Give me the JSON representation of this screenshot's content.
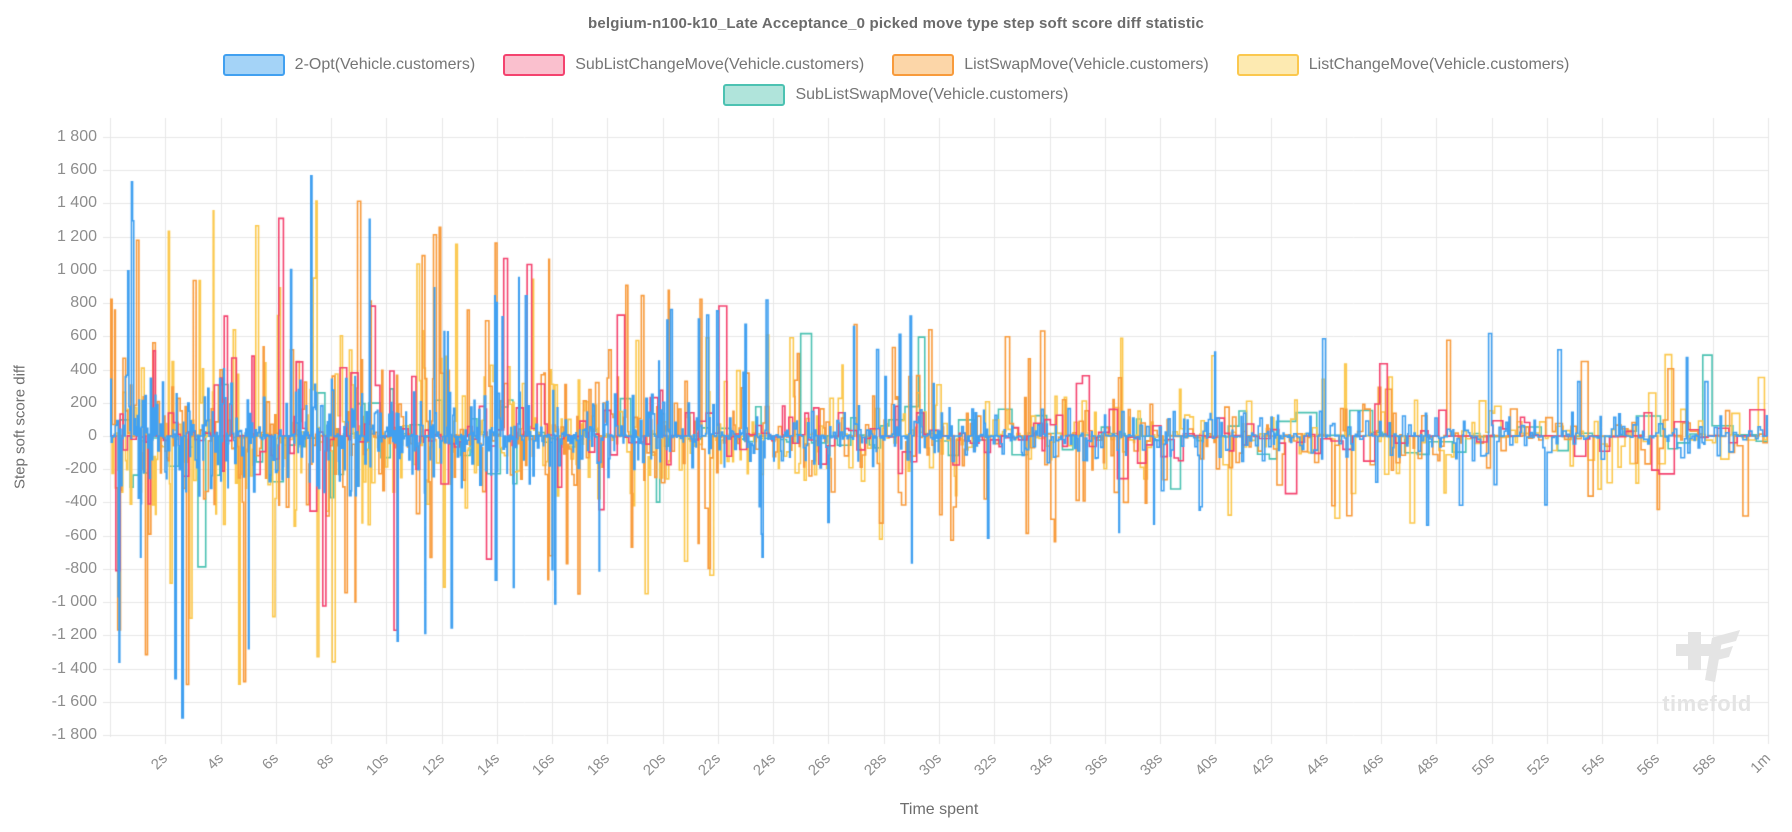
{
  "watermark": {
    "text": "timefold"
  },
  "chart_data": {
    "type": "line",
    "step_style": "step-after",
    "title": "belgium-n100-k10_Late Acceptance_0 picked move type step soft score diff statistic",
    "xlabel": "Time spent",
    "ylabel": "Step soft score diff",
    "legend_position": "top",
    "grid": true,
    "x_range_seconds": [
      0,
      60
    ],
    "ylim": [
      -1800,
      1800
    ],
    "y_tick_step": 200,
    "x_ticks": [
      "2s",
      "4s",
      "6s",
      "8s",
      "10s",
      "12s",
      "14s",
      "16s",
      "18s",
      "20s",
      "22s",
      "24s",
      "26s",
      "28s",
      "30s",
      "32s",
      "34s",
      "36s",
      "38s",
      "40s",
      "42s",
      "44s",
      "46s",
      "48s",
      "50s",
      "52s",
      "54s",
      "56s",
      "58s",
      "1m"
    ],
    "y_tick_labels": [
      "1 800",
      "1 600",
      "1 400",
      "1 200",
      "1 000",
      "800",
      "600",
      "400",
      "200",
      "0",
      "-200",
      "-400",
      "-600",
      "-800",
      "-1 000",
      "-1 200",
      "-1 400",
      "-1 600",
      "-1 800"
    ],
    "colors": {
      "grid": "#e7e7e7",
      "tick_text": "#8d8d8d",
      "title_text": "#6b6b6b"
    },
    "envelope": {
      "t": [
        0,
        1,
        3,
        6,
        9,
        12,
        16,
        20,
        24,
        28,
        32,
        36,
        40,
        44,
        48,
        52,
        56,
        60
      ],
      "scale": [
        0.85,
        1.0,
        1.0,
        0.95,
        0.88,
        0.8,
        0.68,
        0.58,
        0.5,
        0.45,
        0.4,
        0.38,
        0.36,
        0.38,
        0.37,
        0.34,
        0.31,
        0.32
      ]
    },
    "series": [
      {
        "name": "2-Opt(Vehicle.customers)",
        "stroke": "#41a0f0",
        "fill": "#a4d3f7",
        "seed": 7,
        "density": 30,
        "base_amp": 430,
        "spike_prob": 0.05,
        "spike_amp": 1760,
        "z": 5
      },
      {
        "name": "SubListChangeMove(Vehicle.customers)",
        "stroke": "#f4436f",
        "fill": "#fac0ce",
        "seed": 13,
        "density": 7,
        "base_amp": 520,
        "spike_prob": 0.06,
        "spike_amp": 1500,
        "z": 4
      },
      {
        "name": "ListSwapMove(Vehicle.customers)",
        "stroke": "#f89b3c",
        "fill": "#fcd6a8",
        "seed": 23,
        "density": 16,
        "base_amp": 600,
        "spike_prob": 0.09,
        "spike_amp": 1650,
        "z": 3
      },
      {
        "name": "ListChangeMove(Vehicle.customers)",
        "stroke": "#fbc84e",
        "fill": "#fdeab1",
        "seed": 31,
        "density": 16,
        "base_amp": 620,
        "spike_prob": 0.09,
        "spike_amp": 1600,
        "z": 2
      },
      {
        "name": "SubListSwapMove(Vehicle.customers)",
        "stroke": "#4cc2b2",
        "fill": "#b0e4db",
        "seed": 41,
        "density": 4,
        "base_amp": 420,
        "spike_prob": 0.05,
        "spike_amp": 1550,
        "z": 1
      }
    ]
  }
}
